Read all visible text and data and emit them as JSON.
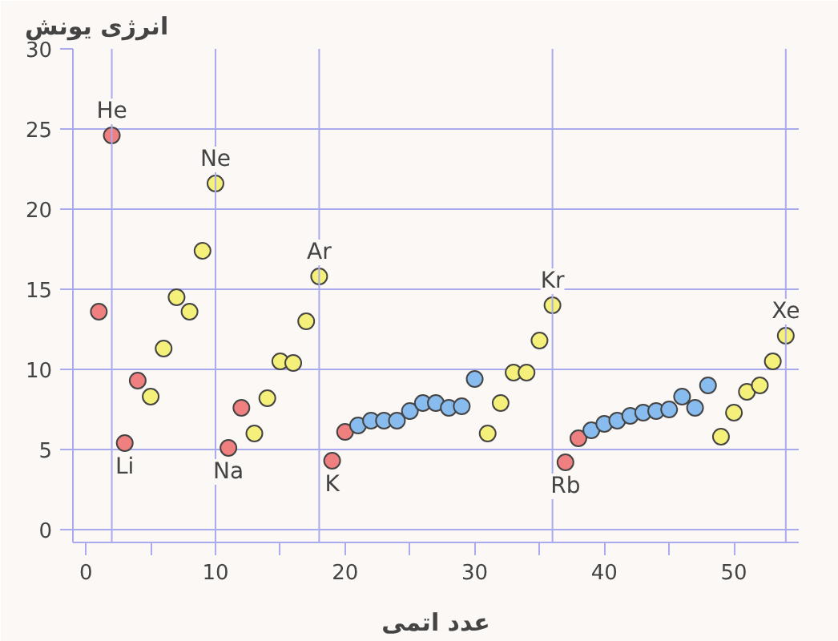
{
  "chart_data": {
    "type": "scatter",
    "title": "انرژی یونش",
    "xlabel": "عدد اتمی",
    "xlim": [
      -1,
      55
    ],
    "ylim": [
      -0.8,
      30
    ],
    "xticks": [
      0,
      {
        "value": 5,
        "label": null
      },
      10,
      {
        "value": 15,
        "label": null
      },
      20,
      {
        "value": 25,
        "label": null
      },
      30,
      {
        "value": 35,
        "label": null
      },
      40,
      {
        "value": 45,
        "label": null
      },
      50
    ],
    "yticks": [
      0,
      5,
      10,
      15,
      20,
      25,
      30
    ],
    "grid": "y",
    "marker": "circle",
    "series": [
      {
        "color": "#f08080",
        "x": [
          1,
          2,
          3,
          4,
          11,
          12,
          19,
          20,
          37,
          38
        ],
        "values": [
          13.6,
          24.6,
          5.4,
          9.3,
          5.1,
          7.6,
          4.3,
          6.1,
          4.2,
          5.7
        ]
      },
      {
        "color": "#f5f07a",
        "x": [
          5,
          6,
          7,
          8,
          9,
          10,
          13,
          14,
          15,
          16,
          17,
          18,
          31,
          32,
          33,
          34,
          35,
          36,
          49,
          50,
          51,
          52,
          53,
          54
        ],
        "values": [
          8.3,
          11.3,
          14.5,
          13.6,
          17.4,
          21.6,
          6.0,
          8.2,
          10.5,
          10.4,
          13.0,
          15.8,
          6.0,
          7.9,
          9.8,
          9.8,
          11.8,
          14.0,
          5.8,
          7.3,
          8.6,
          9.0,
          10.5,
          12.1
        ]
      },
      {
        "color": "#88bbee",
        "x": [
          21,
          22,
          23,
          24,
          25,
          26,
          27,
          28,
          29,
          30,
          39,
          40,
          41,
          42,
          43,
          44,
          45,
          46,
          47,
          48
        ],
        "values": [
          6.5,
          6.8,
          6.8,
          6.8,
          7.4,
          7.9,
          7.9,
          7.6,
          7.7,
          9.4,
          6.2,
          6.6,
          6.8,
          7.1,
          7.3,
          7.4,
          7.5,
          8.3,
          7.6,
          9.0
        ]
      }
    ],
    "ref_lines": [
      {
        "axis": "x",
        "value": 2,
        "color": "#aaaaee"
      },
      {
        "axis": "x",
        "value": 10,
        "color": "#aaaaee"
      },
      {
        "axis": "x",
        "value": 18,
        "color": "#aaaaee"
      },
      {
        "axis": "x",
        "value": 36,
        "color": "#aaaaee"
      },
      {
        "axis": "x",
        "value": 54,
        "color": "#aaaaee"
      }
    ],
    "annotations": [
      {
        "text": "He",
        "x": 2,
        "y": 24.6
      },
      {
        "text": "Ne",
        "x": 10,
        "y": 21.6
      },
      {
        "text": "Ar",
        "x": 18,
        "y": 15.8
      },
      {
        "text": "Kr",
        "x": 36,
        "y": 14.0
      },
      {
        "text": "Xe",
        "x": 54,
        "y": 12.1
      },
      {
        "text": "Li",
        "x": 3,
        "y": 5.4
      },
      {
        "text": "Na",
        "x": 11,
        "y": 5.1
      },
      {
        "text": "K",
        "x": 19,
        "y": 4.3
      },
      {
        "text": "Rb",
        "x": 37,
        "y": 4.2
      }
    ]
  }
}
